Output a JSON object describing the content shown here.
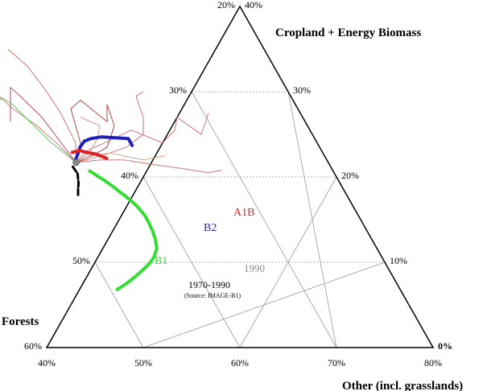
{
  "chart_data": {
    "type": "scatter",
    "subtype": "ternary",
    "title": "",
    "axes": {
      "cropland": {
        "title": "Cropland + Energy Biomass",
        "ticks": [
          {
            "label": "20%",
            "left": "20%",
            "right": "40%"
          },
          {
            "label": "30%",
            "left": "30%",
            "right": "30%"
          },
          {
            "label": "40%",
            "left": "40%",
            "right": "20%"
          },
          {
            "label": "50%",
            "left": "50%",
            "right": "10%"
          },
          {
            "label": "60%",
            "left": "60%",
            "right": "0%"
          }
        ],
        "range": [
          0,
          40
        ]
      },
      "forests": {
        "title": "Forests",
        "range": [
          20,
          60
        ]
      },
      "other": {
        "title": "Other (incl. grasslands)",
        "ticks": [
          "40%",
          "50%",
          "60%",
          "70%",
          "80%"
        ],
        "range": [
          40,
          80
        ]
      }
    },
    "grid": true,
    "series": [
      {
        "name": "B1",
        "color": "#33dd33",
        "style": "thick",
        "points": [
          [
            6.8,
            49.3
          ],
          [
            7.5,
            48.0
          ],
          [
            8.3,
            46.7
          ],
          [
            9.1,
            45.5
          ],
          [
            9.8,
            44.5
          ],
          [
            10.6,
            43.6
          ],
          [
            11.6,
            42.8
          ],
          [
            12.7,
            42.4
          ],
          [
            13.7,
            42.2
          ],
          [
            14.7,
            42.1
          ],
          [
            15.5,
            42.1
          ],
          [
            16.4,
            42.3
          ],
          [
            17.1,
            42.6
          ],
          [
            17.8,
            43.0
          ],
          [
            18.4,
            43.4
          ],
          [
            18.9,
            43.7
          ],
          [
            19.3,
            44.0
          ],
          [
            19.7,
            44.3
          ],
          [
            20.0,
            44.6
          ],
          [
            20.4,
            44.9
          ],
          [
            20.7,
            45.2
          ]
        ]
      },
      {
        "name": "B2",
        "color": "#1f1fbb",
        "style": "thick",
        "points": [
          [
            23.7,
            39.3
          ],
          [
            24.5,
            39.3
          ],
          [
            24.6,
            40.6
          ],
          [
            24.7,
            42.0
          ],
          [
            24.5,
            43.2
          ],
          [
            24.2,
            44.0
          ],
          [
            23.5,
            44.8
          ],
          [
            22.6,
            45.5
          ],
          [
            21.9,
            46.1
          ]
        ]
      },
      {
        "name": "A1B",
        "color": "#e02020",
        "style": "thick",
        "points": [
          [
            22.2,
            42.7
          ],
          [
            22.7,
            43.6
          ],
          [
            22.9,
            44.5
          ],
          [
            23.1,
            45.0
          ],
          [
            22.9,
            45.9
          ]
        ]
      },
      {
        "name": "1970-1990",
        "color": "#000000",
        "style": "thick-dashed",
        "points": [
          [
            17.9,
            47.8
          ],
          [
            18.7,
            47.4
          ],
          [
            19.2,
            47.1
          ],
          [
            20.4,
            46.6
          ],
          [
            21.3,
            46.7
          ]
        ]
      }
    ],
    "scenario_lines": [
      {
        "color": "#cc6666",
        "points": [
          [
            21.7,
            46.1
          ],
          [
            23.0,
            44.5
          ],
          [
            24.0,
            42.0
          ],
          [
            25.5,
            38.5
          ],
          [
            24.0,
            36.0
          ],
          [
            25.5,
            34.0
          ],
          [
            27.0,
            33.0
          ],
          [
            25.0,
            31.5
          ],
          [
            27.5,
            29.5
          ]
        ]
      },
      {
        "color": "#cc6666",
        "points": [
          [
            21.7,
            46.1
          ],
          [
            22.5,
            43.0
          ],
          [
            23.5,
            40.0
          ],
          [
            25.0,
            37.5
          ],
          [
            27.0,
            36.5
          ],
          [
            29.5,
            36.0
          ],
          [
            30.0,
            35.0
          ]
        ]
      },
      {
        "color": "#cc6666",
        "points": [
          [
            21.7,
            46.1
          ],
          [
            22.0,
            43.5
          ],
          [
            22.0,
            41.0
          ],
          [
            21.5,
            38.5
          ],
          [
            21.0,
            35.5
          ],
          [
            20.5,
            33.0
          ],
          [
            20.8,
            31.5
          ]
        ]
      },
      {
        "color": "#b23030",
        "points": [
          [
            21.7,
            46.1
          ],
          [
            22.5,
            44.0
          ],
          [
            23.5,
            42.0
          ],
          [
            26.0,
            40.0
          ],
          [
            28.5,
            39.5
          ],
          [
            26.5,
            40.5
          ],
          [
            29.0,
            42.0
          ],
          [
            28.0,
            43.5
          ],
          [
            24.0,
            44.5
          ],
          [
            21.7,
            46.1
          ]
        ]
      },
      {
        "color": "#cc6666",
        "points": [
          [
            21.7,
            46.1
          ],
          [
            24.0,
            45.0
          ],
          [
            27.5,
            44.8
          ],
          [
            30.0,
            45.0
          ],
          [
            33.0,
            45.5
          ],
          [
            35.0,
            46.5
          ]
        ]
      },
      {
        "color": "#aa3366",
        "points": [
          [
            21.7,
            46.1
          ],
          [
            24.0,
            46.5
          ],
          [
            27.0,
            47.0
          ],
          [
            29.5,
            48.0
          ],
          [
            30.5,
            48.5
          ],
          [
            28.5,
            49.5
          ],
          [
            26.5,
            50.5
          ]
        ]
      },
      {
        "color": "#c07070",
        "points": [
          [
            21.7,
            46.1
          ],
          [
            24.0,
            47.0
          ],
          [
            26.0,
            48.0
          ],
          [
            28.0,
            49.5
          ],
          [
            29.5,
            50.2
          ],
          [
            28.0,
            51.0
          ]
        ]
      },
      {
        "color": "#55bb55",
        "points": [
          [
            21.7,
            46.1
          ],
          [
            24.0,
            47.5
          ],
          [
            26.5,
            48.5
          ],
          [
            28.5,
            49.3
          ],
          [
            29.3,
            50.0
          ],
          [
            28.0,
            51.5
          ],
          [
            26.5,
            53.0
          ]
        ]
      },
      {
        "color": "#cc8888",
        "points": [
          [
            21.7,
            46.1
          ],
          [
            23.0,
            44.0
          ],
          [
            24.5,
            42.5
          ],
          [
            26.0,
            41.5
          ],
          [
            27.0,
            43.0
          ]
        ]
      },
      {
        "color": "#c9a080",
        "points": [
          [
            21.7,
            46.1
          ],
          [
            22.5,
            44.5
          ],
          [
            22.8,
            42.0
          ],
          [
            22.0,
            39.0
          ],
          [
            22.5,
            36.5
          ]
        ]
      }
    ],
    "labels": {
      "b1": "B1",
      "b2": "B2",
      "a1b": "A1B",
      "year_1990": "1990",
      "hist_period": "1970-1990",
      "source": "(Source: IMAGE-B1)"
    },
    "colors": {
      "b1": "#33dd33",
      "b2": "#1f1fbb",
      "a1b": "#e02020",
      "year_1990": "#888888",
      "grid": "#999999"
    }
  }
}
